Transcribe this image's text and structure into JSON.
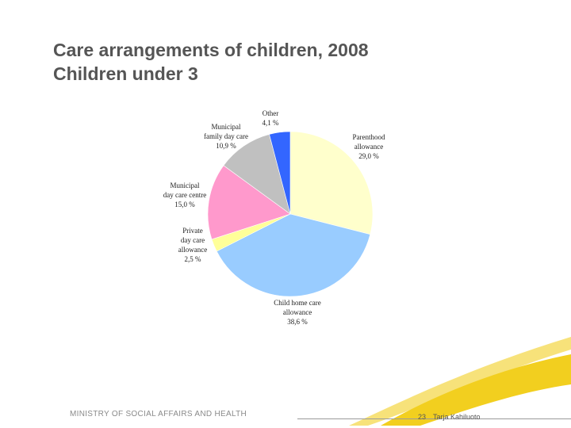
{
  "slide": {
    "title_line1": "Care arrangements of children, 2008",
    "title_line2": "Children under 3",
    "footer_org": "MINISTRY OF SOCIAL AFFAIRS AND HEALTH",
    "page_number": "23",
    "author": "Tarja Kahiluoto"
  },
  "colors": {
    "swoosh_primary": "#f2cf1f",
    "swoosh_secondary": "#f7e27a"
  },
  "chart_data": {
    "type": "pie",
    "title": "",
    "slices": [
      {
        "label_lines": [
          "Parenthood",
          "allowance",
          "29,0 %"
        ],
        "value": 29.0,
        "color": "#ffffcc"
      },
      {
        "label_lines": [
          "Child home care",
          "allowance",
          "38,6 %"
        ],
        "value": 38.6,
        "color": "#99ccff"
      },
      {
        "label_lines": [
          "Private",
          "day care",
          "allowance",
          "2,5 %"
        ],
        "value": 2.5,
        "color": "#ffff99"
      },
      {
        "label_lines": [
          "Municipal",
          "day care centre",
          "15,0 %"
        ],
        "value": 15.0,
        "color": "#ff99cc"
      },
      {
        "label_lines": [
          "Municipal",
          "family day care",
          "10,9 %"
        ],
        "value": 10.9,
        "color": "#c0c0c0"
      },
      {
        "label_lines": [
          "Other",
          "4,1 %"
        ],
        "value": 4.1,
        "color": "#3366ff"
      }
    ]
  }
}
